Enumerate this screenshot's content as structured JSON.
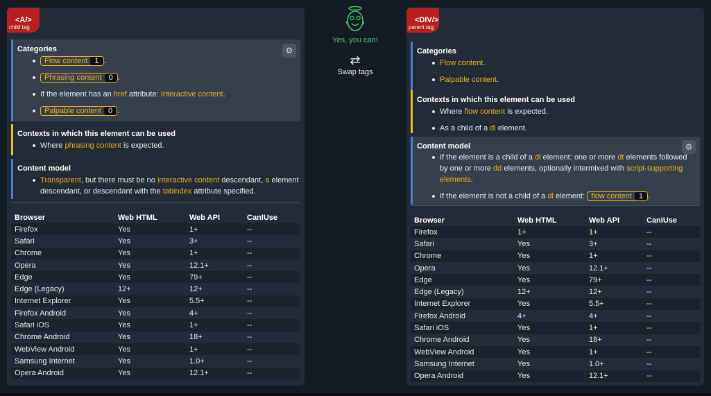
{
  "center": {
    "message": "Yes, you can!",
    "swap_icon": "⇄",
    "swap_label": "Swap tags"
  },
  "left": {
    "tag": "<A/>",
    "role": "child tag",
    "categories": {
      "title": "Categories",
      "flow": "Flow content",
      "flow_count": "1",
      "phrasing": "Phrasing content",
      "phrasing_count": "0",
      "href_prefix": "If the element has an",
      "href_word": "href",
      "href_mid": "attribute:",
      "interactive": "Interactive content",
      "palpable": "Palpable content",
      "palpable_count": "0"
    },
    "contexts": {
      "title": "Contexts in which this element can be used",
      "prefix": "Where",
      "link": "phrasing content",
      "suffix": "is expected."
    },
    "content_model": {
      "title": "Content model",
      "transparent": "Transparent",
      "t1": ", but there must be no",
      "interactive": "interactive content",
      "t2": "descendant,",
      "a_link": "a",
      "t3": "element descendant, or descendant with the",
      "tabindex": "tabindex",
      "t4": "attribute specified."
    },
    "table": {
      "headers": [
        "Browser",
        "Web HTML",
        "Web API",
        "CanIUse"
      ],
      "rows": [
        [
          "Firefox",
          "Yes",
          "1+",
          "--"
        ],
        [
          "Safari",
          "Yes",
          "3+",
          "--"
        ],
        [
          "Chrome",
          "Yes",
          "1+",
          "--"
        ],
        [
          "Opera",
          "Yes",
          "12.1+",
          "--"
        ],
        [
          "Edge",
          "Yes",
          "79+",
          "--"
        ],
        [
          "Edge (Legacy)",
          "12+",
          "12+",
          "--"
        ],
        [
          "Internet Explorer",
          "Yes",
          "5.5+",
          "--"
        ],
        [
          "Firefox Android",
          "Yes",
          "4+",
          "--"
        ],
        [
          "Safari iOS",
          "Yes",
          "1+",
          "--"
        ],
        [
          "Chrome Android",
          "Yes",
          "18+",
          "--"
        ],
        [
          "WebView Android",
          "Yes",
          "1+",
          "--"
        ],
        [
          "Samsung Internet",
          "Yes",
          "1.0+",
          "--"
        ],
        [
          "Opera Android",
          "Yes",
          "12.1+",
          "--"
        ]
      ]
    }
  },
  "right": {
    "tag": "<DIV/>",
    "role": "parent tag",
    "categories": {
      "title": "Categories",
      "flow": "Flow content",
      "palpable": "Palpable content"
    },
    "contexts": {
      "title": "Contexts in which this element can be used",
      "c1_prefix": "Where",
      "c1_link": "flow content",
      "c1_suffix": "is expected.",
      "c2_prefix": "As a child of a",
      "c2_link": "dl",
      "c2_suffix": "element."
    },
    "content_model": {
      "title": "Content model",
      "a1": "If the element is a child of a",
      "dl": "dl",
      "a2": "element: one or more",
      "dt": "dt",
      "a3": "elements followed by one or more",
      "dd": "dd",
      "a4": "elements, optionally intermixed with",
      "script": "script-supporting elements",
      "b1": "If the element is not a child of a",
      "b2": "element:",
      "flow_pill": "flow content",
      "flow_count": "1"
    },
    "table": {
      "headers": [
        "Browser",
        "Web HTML",
        "Web API",
        "CanIUse"
      ],
      "rows": [
        [
          "Firefox",
          "1+",
          "1+",
          "--"
        ],
        [
          "Safari",
          "Yes",
          "3+",
          "--"
        ],
        [
          "Chrome",
          "Yes",
          "1+",
          "--"
        ],
        [
          "Opera",
          "Yes",
          "12.1+",
          "--"
        ],
        [
          "Edge",
          "Yes",
          "79+",
          "--"
        ],
        [
          "Edge (Legacy)",
          "12+",
          "12+",
          "--"
        ],
        [
          "Internet Explorer",
          "Yes",
          "5.5+",
          "--"
        ],
        [
          "Firefox Android",
          "4+",
          "4+",
          "--"
        ],
        [
          "Safari iOS",
          "Yes",
          "1+",
          "--"
        ],
        [
          "Chrome Android",
          "Yes",
          "18+",
          "--"
        ],
        [
          "WebView Android",
          "Yes",
          "1+",
          "--"
        ],
        [
          "Samsung Internet",
          "Yes",
          "1.0+",
          "--"
        ],
        [
          "Opera Android",
          "Yes",
          "12.1+",
          "--"
        ]
      ]
    }
  },
  "colors": {
    "accent": "#eab01e",
    "badge": "#b3221f",
    "success": "#43c06a",
    "category_border": "#4d7fd0",
    "context_border": "#e6b92e"
  },
  "icons": [
    "gear-icon",
    "happy-face-icon",
    "swap-icon"
  ]
}
